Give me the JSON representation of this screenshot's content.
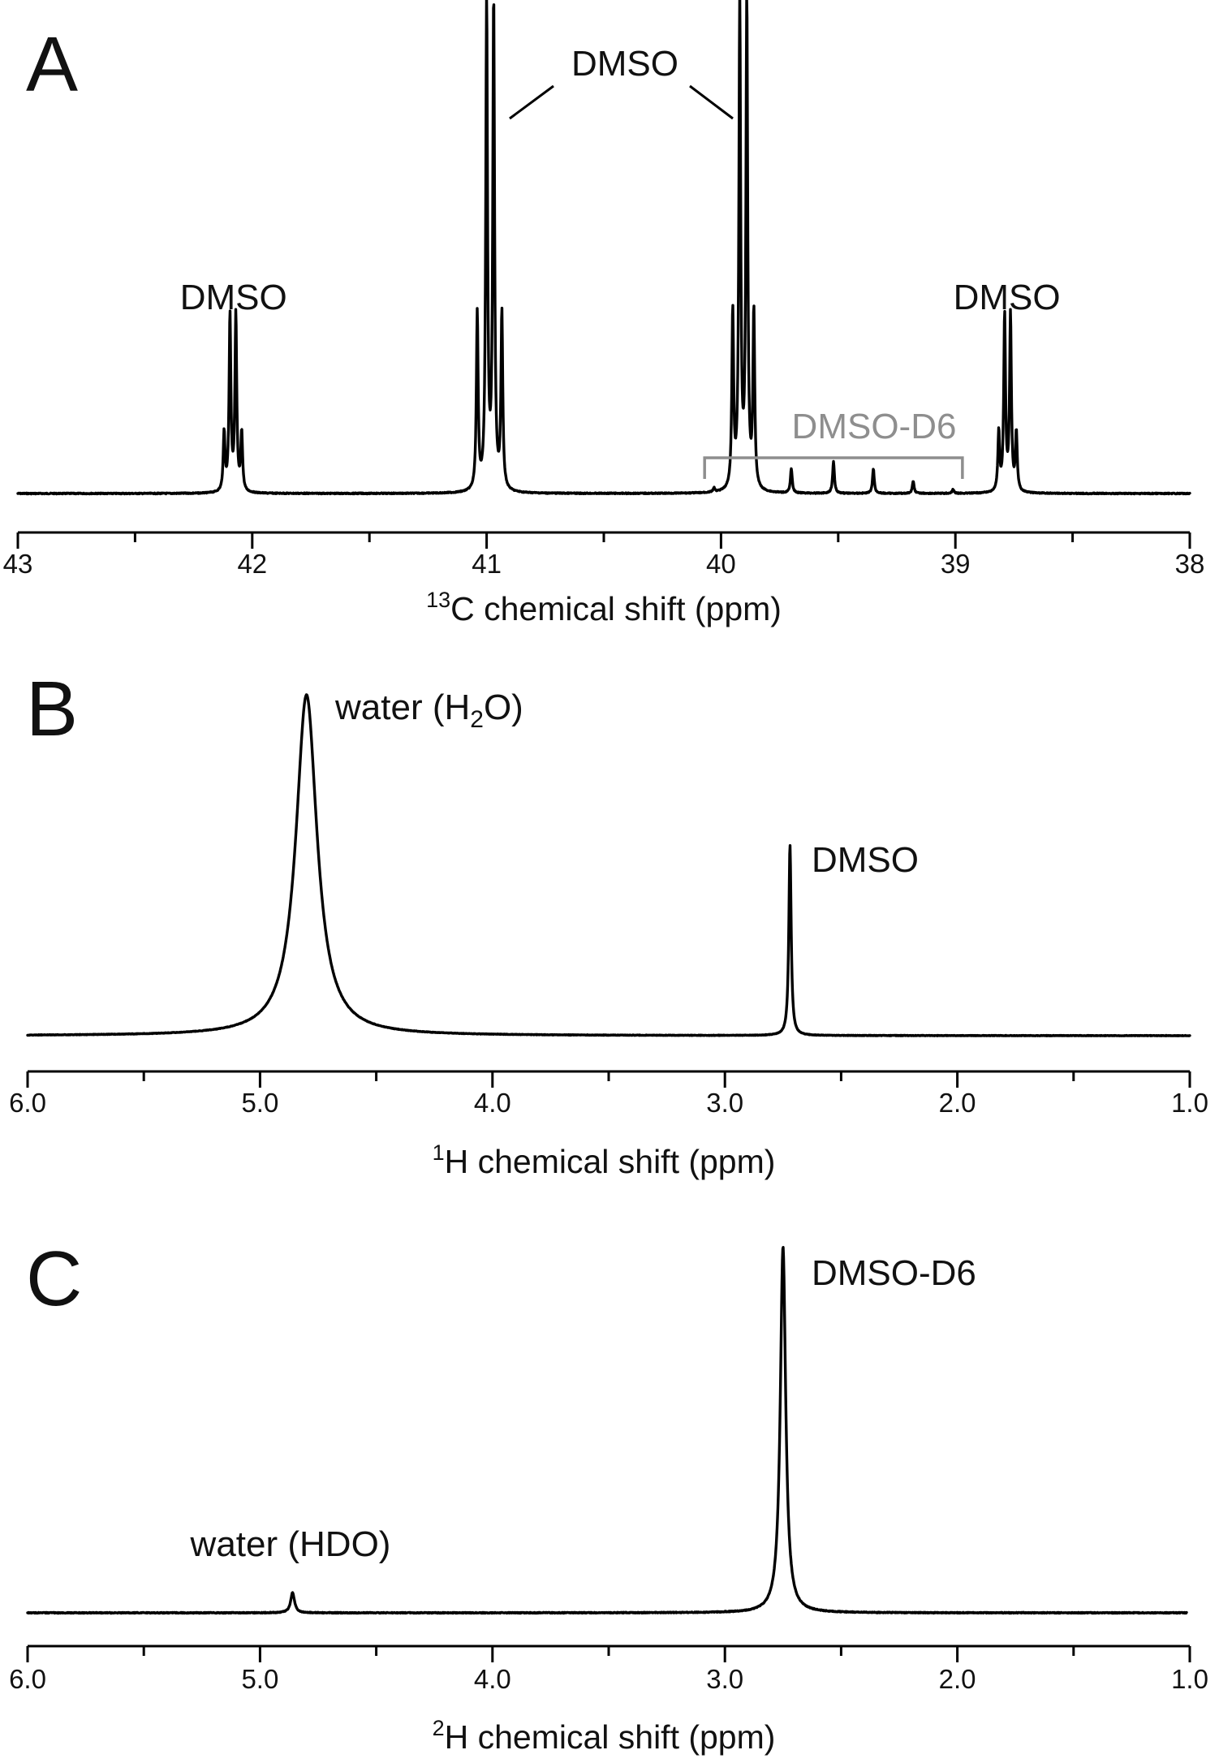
{
  "chart_data": [
    {
      "panel": "A",
      "type": "line",
      "xlabel": "C chemical shift (ppm)",
      "xlabel_superscript": "13",
      "xlim": [
        43,
        38
      ],
      "x_ticks": [
        "43",
        "42",
        "41",
        "40",
        "39",
        "38"
      ],
      "reversed_axis": true,
      "annotations": [
        {
          "text": "DMSO",
          "x": 42.08
        },
        {
          "text": "DMSO",
          "x": 40.48,
          "leaders_to": [
            40.93,
            39.92
          ]
        },
        {
          "text": "DMSO",
          "x": 38.77
        },
        {
          "text": "DMSO-D6",
          "x": 39.5,
          "bracket": [
            40.07,
            38.97
          ],
          "color": "#8e8e8e"
        }
      ],
      "peaks": [
        {
          "x": 42.12,
          "h": 0.12
        },
        {
          "x": 42.095,
          "h": 0.36
        },
        {
          "x": 42.07,
          "h": 0.36
        },
        {
          "x": 42.045,
          "h": 0.12
        },
        {
          "x": 41.04,
          "h": 0.36
        },
        {
          "x": 41.0,
          "h": 1.0
        },
        {
          "x": 40.97,
          "h": 1.0
        },
        {
          "x": 40.935,
          "h": 0.36
        },
        {
          "x": 39.95,
          "h": 0.36
        },
        {
          "x": 39.92,
          "h": 1.0
        },
        {
          "x": 39.89,
          "h": 1.0
        },
        {
          "x": 39.86,
          "h": 0.36
        },
        {
          "x": 40.03,
          "h": 0.008
        },
        {
          "x": 39.7,
          "h": 0.05
        },
        {
          "x": 39.52,
          "h": 0.065
        },
        {
          "x": 39.35,
          "h": 0.05
        },
        {
          "x": 39.18,
          "h": 0.025
        },
        {
          "x": 39.01,
          "h": 0.008
        },
        {
          "x": 38.815,
          "h": 0.12
        },
        {
          "x": 38.79,
          "h": 0.36
        },
        {
          "x": 38.765,
          "h": 0.36
        },
        {
          "x": 38.74,
          "h": 0.12
        }
      ]
    },
    {
      "panel": "B",
      "type": "line",
      "xlabel": "H chemical shift (ppm)",
      "xlabel_superscript": "1",
      "xlim": [
        6.0,
        1.0
      ],
      "x_ticks": [
        "6.0",
        "5.0",
        "4.0",
        "3.0",
        "2.0",
        "1.0"
      ],
      "reversed_axis": true,
      "annotations": [
        {
          "text": "water (H",
          "subscript": "2",
          "text_after": "O)",
          "x": 4.8
        },
        {
          "text": "DMSO",
          "x": 2.72
        }
      ],
      "peaks": [
        {
          "x": 4.8,
          "h": 1.0,
          "width": 0.055
        },
        {
          "x": 2.72,
          "h": 0.56,
          "width": 0.006
        }
      ]
    },
    {
      "panel": "C",
      "type": "line",
      "xlabel": "H chemical shift (ppm)",
      "xlabel_superscript": "2",
      "xlim": [
        6.0,
        1.0
      ],
      "x_ticks": [
        "6.0",
        "5.0",
        "4.0",
        "3.0",
        "2.0",
        "1.0"
      ],
      "reversed_axis": true,
      "annotations": [
        {
          "text": "water (HDO)",
          "x": 4.86
        },
        {
          "text": "DMSO-D6",
          "x": 2.75
        }
      ],
      "peaks": [
        {
          "x": 4.86,
          "h": 0.055,
          "width": 0.01
        },
        {
          "x": 2.75,
          "h": 1.0,
          "width": 0.014
        }
      ]
    }
  ]
}
